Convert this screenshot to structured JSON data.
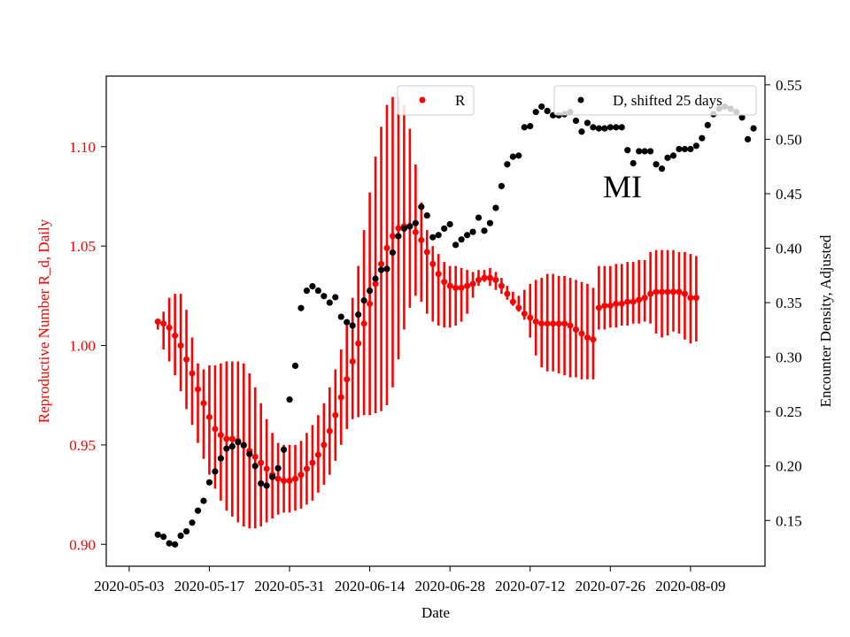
{
  "chart_data": {
    "type": "scatter",
    "annotation": "MI",
    "xlabel": "Date",
    "ylabel_left": "Reproductive Number R_d, Daily",
    "ylabel_right": "Encounter Density, Adjusted",
    "xlim": [
      "2020-04-29",
      "2020-08-22"
    ],
    "ylim_left": [
      0.889,
      1.1355
    ],
    "ylim_right": [
      0.108,
      0.558
    ],
    "x_ticks": [
      "2020-05-03",
      "2020-05-17",
      "2020-05-31",
      "2020-06-14",
      "2020-06-28",
      "2020-07-12",
      "2020-07-26",
      "2020-08-09"
    ],
    "y_ticks_left": [
      "0.90",
      "0.95",
      "1.00",
      "1.05",
      "1.10"
    ],
    "y_ticks_right": [
      "0.15",
      "0.20",
      "0.25",
      "0.30",
      "0.35",
      "0.40",
      "0.45",
      "0.50",
      "0.55"
    ],
    "grid": false,
    "legends": [
      {
        "label": "R",
        "marker_color": "#ff0000",
        "placement": "upper-center"
      },
      {
        "label": "D, shifted 25 days",
        "marker_color": "#000000",
        "placement": "upper-right"
      }
    ],
    "colors": {
      "r_series": "#ff0000",
      "d_series": "#000000",
      "left_axis": "#ff0000",
      "right_axis": "#000000"
    },
    "series": [
      {
        "name": "R",
        "axis": "left",
        "color": "#ff0000",
        "start_date": "2020-05-08",
        "values": [
          1.012,
          1.011,
          1.009,
          1.005,
          1.0,
          0.993,
          0.986,
          0.978,
          0.971,
          0.964,
          0.958,
          0.955,
          0.953,
          0.953,
          0.952,
          0.95,
          0.947,
          0.944,
          0.941,
          0.938,
          0.935,
          0.933,
          0.932,
          0.932,
          0.933,
          0.935,
          0.938,
          0.941,
          0.945,
          0.95,
          0.957,
          0.965,
          0.974,
          0.983,
          0.992,
          1.001,
          1.011,
          1.021,
          1.031,
          1.041,
          1.049,
          1.055,
          1.059,
          1.06,
          1.06,
          1.057,
          1.053,
          1.047,
          1.041,
          1.036,
          1.032,
          1.03,
          1.029,
          1.029,
          1.03,
          1.031,
          1.033,
          1.034,
          1.034,
          1.033,
          1.03,
          1.026,
          1.022,
          1.019,
          1.016,
          1.014,
          1.012,
          1.011,
          1.011,
          1.011,
          1.011,
          1.011,
          1.01,
          1.008,
          1.006,
          1.004,
          1.003,
          1.019,
          1.02,
          1.02,
          1.021,
          1.021,
          1.022,
          1.022,
          1.023,
          1.024,
          1.026,
          1.027,
          1.027,
          1.027,
          1.027,
          1.027,
          1.026,
          1.024,
          1.024
        ],
        "error_low": [
          1.008,
          0.998,
          0.992,
          0.985,
          0.977,
          0.968,
          0.96,
          0.951,
          0.943,
          0.935,
          0.928,
          0.922,
          0.917,
          0.914,
          0.911,
          0.909,
          0.908,
          0.908,
          0.909,
          0.911,
          0.913,
          0.915,
          0.916,
          0.916,
          0.917,
          0.918,
          0.92,
          0.922,
          0.926,
          0.93,
          0.935,
          0.942,
          0.95,
          0.958,
          0.963,
          0.964,
          0.965,
          0.965,
          0.966,
          0.967,
          0.97,
          0.979,
          0.993,
          1.008,
          1.019,
          1.025,
          1.022,
          1.016,
          1.012,
          1.01,
          1.009,
          1.009,
          1.01,
          1.012,
          1.016,
          1.024,
          1.03,
          1.032,
          1.03,
          1.028,
          1.026,
          1.023,
          1.02,
          1.017,
          1.013,
          1.004,
          0.995,
          0.989,
          0.987,
          0.987,
          0.986,
          0.985,
          0.984,
          0.984,
          0.983,
          0.983,
          0.983,
          1.008,
          1.008,
          1.009,
          1.009,
          1.01,
          1.01,
          1.011,
          1.011,
          1.012,
          1.011,
          1.006,
          1.004,
          1.005,
          1.007,
          1.006,
          1.003,
          1.001,
          1.002
        ],
        "error_high": [
          1.012,
          1.017,
          1.024,
          1.026,
          1.026,
          1.018,
          1.004,
          0.991,
          0.988,
          0.99,
          0.99,
          0.991,
          0.992,
          0.992,
          0.992,
          0.991,
          0.986,
          0.979,
          0.971,
          0.963,
          0.956,
          0.951,
          0.95,
          0.95,
          0.95,
          0.952,
          0.956,
          0.96,
          0.965,
          0.971,
          0.979,
          0.988,
          0.998,
          1.01,
          1.024,
          1.04,
          1.058,
          1.077,
          1.095,
          1.11,
          1.121,
          1.125,
          1.125,
          1.121,
          1.109,
          1.091,
          1.072,
          1.058,
          1.05,
          1.046,
          1.042,
          1.04,
          1.04,
          1.039,
          1.038,
          1.037,
          1.038,
          1.038,
          1.039,
          1.037,
          1.034,
          1.03,
          1.027,
          1.025,
          1.028,
          1.031,
          1.033,
          1.034,
          1.036,
          1.036,
          1.035,
          1.035,
          1.034,
          1.033,
          1.032,
          1.031,
          1.029,
          1.04,
          1.04,
          1.04,
          1.041,
          1.041,
          1.042,
          1.042,
          1.043,
          1.043,
          1.047,
          1.048,
          1.048,
          1.048,
          1.048,
          1.047,
          1.047,
          1.046,
          1.045
        ]
      },
      {
        "name": "D, shifted 25 days",
        "axis": "right",
        "color": "#000000",
        "start_date": "2020-05-08",
        "values": [
          0.137,
          0.135,
          0.129,
          0.128,
          0.136,
          0.14,
          0.148,
          0.159,
          0.168,
          0.185,
          0.195,
          0.207,
          0.216,
          0.218,
          0.222,
          0.219,
          0.211,
          0.2,
          0.184,
          0.182,
          0.19,
          0.198,
          0.215,
          0.261,
          0.292,
          0.345,
          0.361,
          0.365,
          0.361,
          0.356,
          0.35,
          0.355,
          0.337,
          0.332,
          0.329,
          0.339,
          0.352,
          0.361,
          0.372,
          0.38,
          0.381,
          0.396,
          0.411,
          0.418,
          0.42,
          0.423,
          0.438,
          0.43,
          0.41,
          0.412,
          0.418,
          0.422,
          0.403,
          0.408,
          0.412,
          0.415,
          0.428,
          0.416,
          0.423,
          0.437,
          0.457,
          0.477,
          0.484,
          0.485,
          0.511,
          0.512,
          0.525,
          0.53,
          0.526,
          0.522,
          0.522,
          0.523,
          0.525,
          0.517,
          0.507,
          0.515,
          0.511,
          0.51,
          0.51,
          0.511,
          0.511,
          0.511,
          0.49,
          0.478,
          0.489,
          0.489,
          0.489,
          0.477,
          0.473,
          0.483,
          0.485,
          0.491,
          0.491,
          0.491,
          0.494,
          0.501,
          0.513,
          0.523,
          0.528,
          0.53,
          0.528,
          0.525,
          0.52,
          0.5,
          0.51
        ]
      }
    ]
  }
}
